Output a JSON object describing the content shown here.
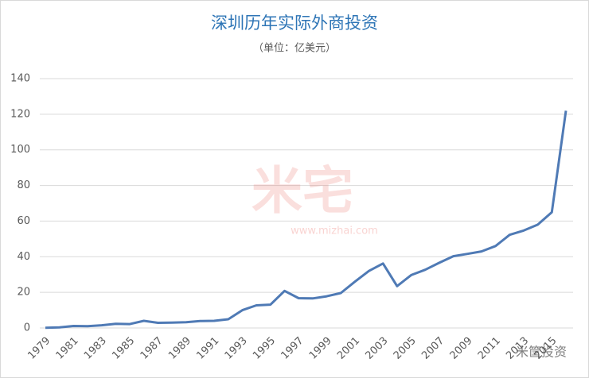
{
  "chart_data": {
    "type": "line",
    "title": "深圳历年实际外商投资",
    "subtitle": "（单位：亿美元）",
    "watermarks": [
      "米宅",
      "www.mizhai.com",
      "米筐投资"
    ],
    "categories": [
      "1979",
      null,
      "1981",
      null,
      "1983",
      null,
      "1985",
      null,
      "1987",
      null,
      "1989",
      null,
      "1991",
      null,
      "1993",
      null,
      "1995",
      null,
      "1997",
      null,
      "1999",
      null,
      "2001",
      null,
      "2003",
      null,
      "2005",
      null,
      "2007",
      null,
      "2009",
      null,
      "2011",
      null,
      "2013",
      null,
      "2015",
      null
    ],
    "series": [
      {
        "name": "实际外商投资",
        "color": "#4f7ab5",
        "values": [
          0.15,
          0.3,
          1.1,
          1.0,
          1.5,
          2.3,
          2.2,
          4.0,
          2.9,
          3.0,
          3.2,
          3.9,
          4.0,
          4.9,
          10.0,
          12.7,
          13.1,
          20.8,
          16.7,
          16.6,
          17.8,
          19.6,
          26,
          32,
          36.2,
          23.5,
          29.7,
          32.7,
          36.6,
          40.3,
          41.6,
          43,
          46,
          52.3,
          54.7,
          58,
          65,
          122
        ]
      }
    ],
    "ylim": [
      0,
      140
    ],
    "yticks": [
      0,
      20,
      40,
      60,
      80,
      100,
      120,
      140
    ],
    "grid": true
  }
}
